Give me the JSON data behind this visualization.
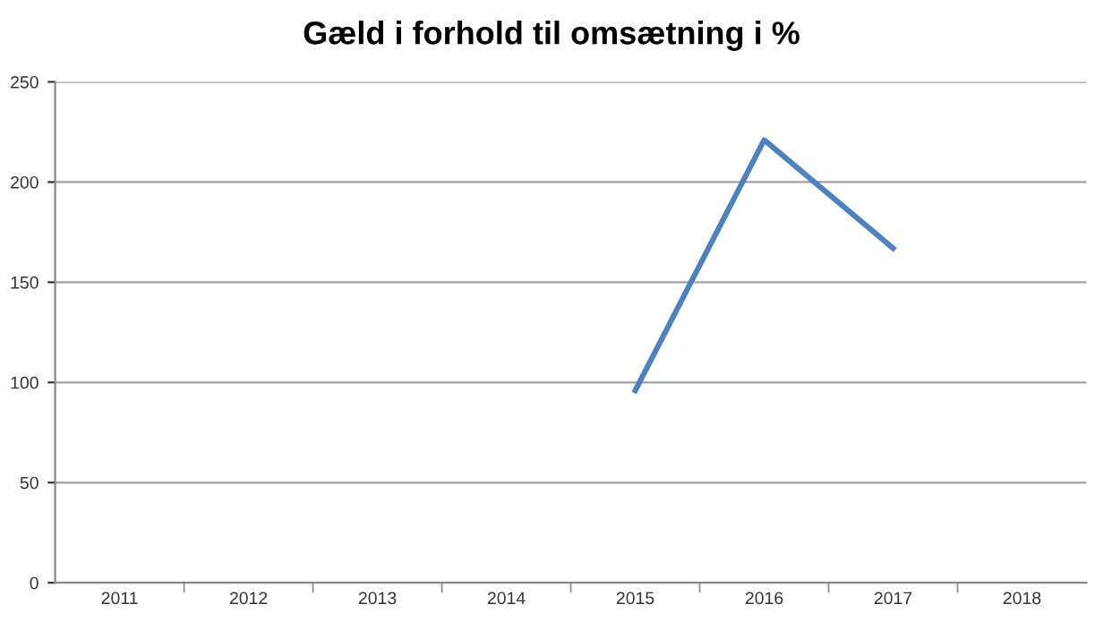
{
  "chart_data": {
    "type": "line",
    "title": "Gæld i forhold til omsætning i %",
    "categories": [
      "2011",
      "2012",
      "2013",
      "2014",
      "2015",
      "2016",
      "2017",
      "2018"
    ],
    "series": [
      {
        "color": "#4f81bd",
        "values": [
          null,
          null,
          null,
          null,
          96,
          221,
          167,
          null
        ]
      }
    ],
    "ylim": [
      0,
      250
    ],
    "yticks": [
      0,
      50,
      100,
      150,
      200,
      250
    ],
    "grid": "y",
    "legend": false,
    "marker": "none",
    "line_style": "solid"
  }
}
